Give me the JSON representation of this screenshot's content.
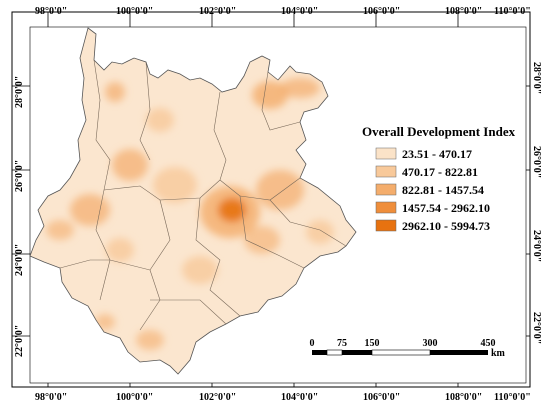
{
  "map": {
    "lon_ticks": [
      "98°0'0\"",
      "100°0'0\"",
      "102°0'0\"",
      "104°0'0\"",
      "106°0'0\"",
      "108°0'0\"",
      "110°0'0\""
    ],
    "lat_ticks": [
      "28°0'0\"",
      "26°0'0\"",
      "24°0'0\"",
      "22°0'0\""
    ],
    "background_color": "#ffffff",
    "province_fill": "#fbe6cf"
  },
  "legend": {
    "title": "Overall Development Index",
    "classes": [
      {
        "label": "23.51 - 470.17",
        "color": "#fbe3c8"
      },
      {
        "label": "470.17 - 822.81",
        "color": "#f8c99a"
      },
      {
        "label": "822.81 - 1457.54",
        "color": "#f4ad6c"
      },
      {
        "label": "1457.54 - 2962.10",
        "color": "#ef8e3b"
      },
      {
        "label": "2962.10 - 5994.73",
        "color": "#e77210"
      }
    ]
  },
  "scale_bar": {
    "ticks": [
      "0",
      "75",
      "150",
      "300",
      "450"
    ],
    "unit": "km"
  }
}
